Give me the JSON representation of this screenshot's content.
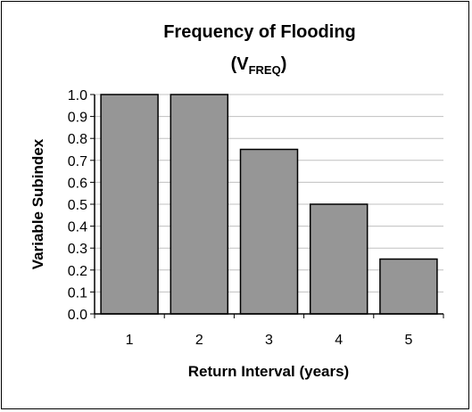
{
  "chart_data": {
    "type": "bar",
    "title_main": "Frequency of Flooding",
    "title_open": "(V",
    "title_sub": "FREQ",
    "title_close": ")",
    "xlabel": "Return Interval (years)",
    "ylabel": "Variable Subindex",
    "categories": [
      "1",
      "2",
      "3",
      "4",
      "5"
    ],
    "values": [
      1.0,
      1.0,
      0.75,
      0.5,
      0.25
    ],
    "ylim": [
      0,
      1.0
    ],
    "yticks": [
      "0.0",
      "0.1",
      "0.2",
      "0.3",
      "0.4",
      "0.5",
      "0.6",
      "0.7",
      "0.8",
      "0.9",
      "1.0"
    ],
    "grid": "horizontal",
    "bar_color": "#969696",
    "bar_edge": "#000000",
    "grid_color": "#c0c0c0"
  }
}
